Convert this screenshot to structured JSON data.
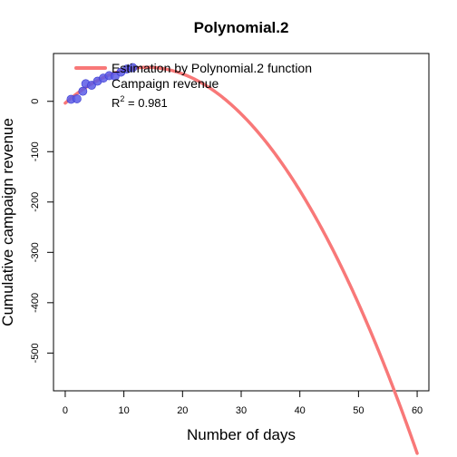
{
  "chart_data": {
    "type": "scatter",
    "title": "Polynomial.2",
    "xlabel": "Number of days",
    "ylabel": "Cumulative campaign revenue",
    "xlim": [
      -2,
      62
    ],
    "ylim": [
      -575,
      95
    ],
    "x_ticks": [
      0,
      10,
      20,
      30,
      40,
      50,
      60
    ],
    "y_ticks": [
      0,
      -100,
      -200,
      -300,
      -400,
      -500
    ],
    "grid": false,
    "legend_position": "top-left",
    "legend": [
      {
        "label": "Estimation by Polynomial.2 function",
        "kind": "line",
        "color": "#f87878"
      },
      {
        "label": "Campaign revenue",
        "kind": "points",
        "color": "#5a5ae6"
      }
    ],
    "r2": {
      "prefix": "R",
      "superscript": "2",
      "value": " = 0.981"
    },
    "series": [
      {
        "name": "Campaign revenue",
        "kind": "points",
        "color": "#5a5ae6",
        "x": [
          1,
          2,
          3,
          3.5,
          4.5,
          5.5,
          6.5,
          7.5,
          8.5,
          9.5,
          10.5,
          11.5
        ],
        "y": [
          4,
          5,
          20,
          35,
          32,
          40,
          46,
          51,
          50,
          58,
          64,
          67
        ]
      },
      {
        "name": "Estimation by Polynomial.2 function",
        "kind": "line",
        "color": "#f87878",
        "function": "polynomial2",
        "coefficients": {
          "a": -0.3624,
          "b": 10.15,
          "c": -3.5
        },
        "x_range": [
          0,
          60
        ]
      }
    ]
  }
}
